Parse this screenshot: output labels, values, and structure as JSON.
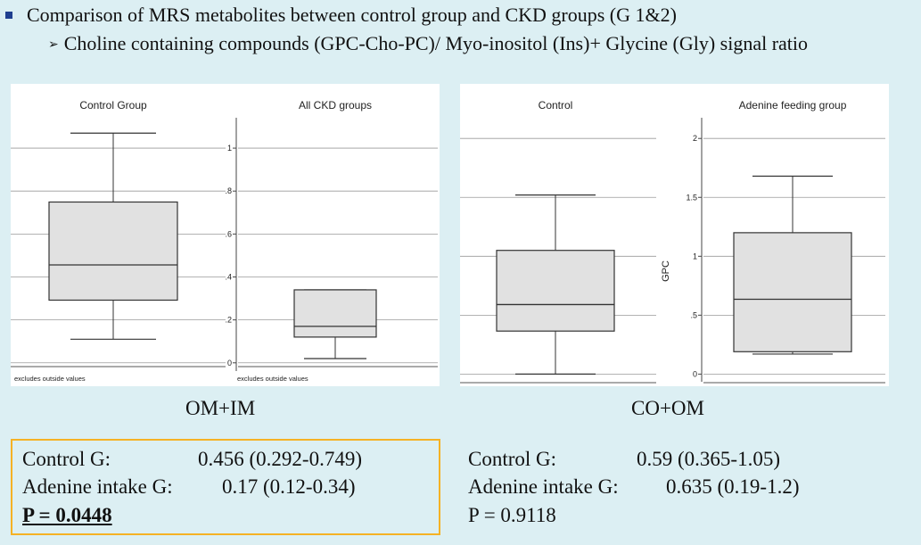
{
  "header": {
    "title": "Comparison of MRS metabolites between control group and CKD groups (G 1&2)",
    "subtitle": "Choline containing compounds (GPC-Cho-PC)/ Myo-inositol (Ins)+ Glycine (Gly) signal ratio"
  },
  "chart_data": [
    {
      "type": "box",
      "caption": "OM+IM",
      "ylabel": "",
      "ylim": [
        -0.03,
        1.1
      ],
      "yticks": [
        0,
        0.2,
        0.4,
        0.6,
        0.8,
        1
      ],
      "ytick_labels": [
        "0",
        ".2",
        ".4",
        ".6",
        ".8",
        "1"
      ],
      "grid": true,
      "series": [
        {
          "name": "Control Group",
          "footnote": "excludes outside values",
          "whisker_low": 0.11,
          "q1": 0.292,
          "median": 0.456,
          "q3": 0.749,
          "whisker_high": 1.07
        },
        {
          "name": "All CKD groups",
          "footnote": "excludes outside values",
          "whisker_low": 0.02,
          "q1": 0.12,
          "median": 0.17,
          "q3": 0.34,
          "whisker_high": 0.34
        }
      ]
    },
    {
      "type": "box",
      "caption": "CO+OM",
      "ylabel": "GPC",
      "ylim": [
        -0.05,
        2.1
      ],
      "yticks": [
        0,
        0.5,
        1,
        1.5,
        2
      ],
      "ytick_labels": [
        "0",
        ".5",
        "1",
        "1.5",
        "2"
      ],
      "grid": true,
      "series": [
        {
          "name": "Control",
          "footnote": "",
          "whisker_low": 0.0,
          "q1": 0.365,
          "median": 0.59,
          "q3": 1.05,
          "whisker_high": 1.52
        },
        {
          "name": "Adenine feeding group",
          "footnote": "",
          "whisker_low": 0.17,
          "q1": 0.19,
          "median": 0.635,
          "q3": 1.2,
          "whisker_high": 1.68
        }
      ]
    }
  ],
  "results": {
    "left": {
      "control_label": "Control G:",
      "control_value": "0.456 (0.292-0.749)",
      "adenine_label": "Adenine intake G:",
      "adenine_value": "0.17 (0.12-0.34)",
      "p_value": "P = 0.0448"
    },
    "right": {
      "control_label": "Control G:",
      "control_value": "0.59 (0.365-1.05)",
      "adenine_label": "Adenine intake G:",
      "adenine_value": "0.635 (0.19-1.2)",
      "p_value": "P = 0.9118"
    }
  },
  "colors": {
    "background": "#dceff3",
    "box_fill": "#e1e1e1",
    "highlight_border": "#f5b225",
    "bullet": "#1f3f8f"
  }
}
